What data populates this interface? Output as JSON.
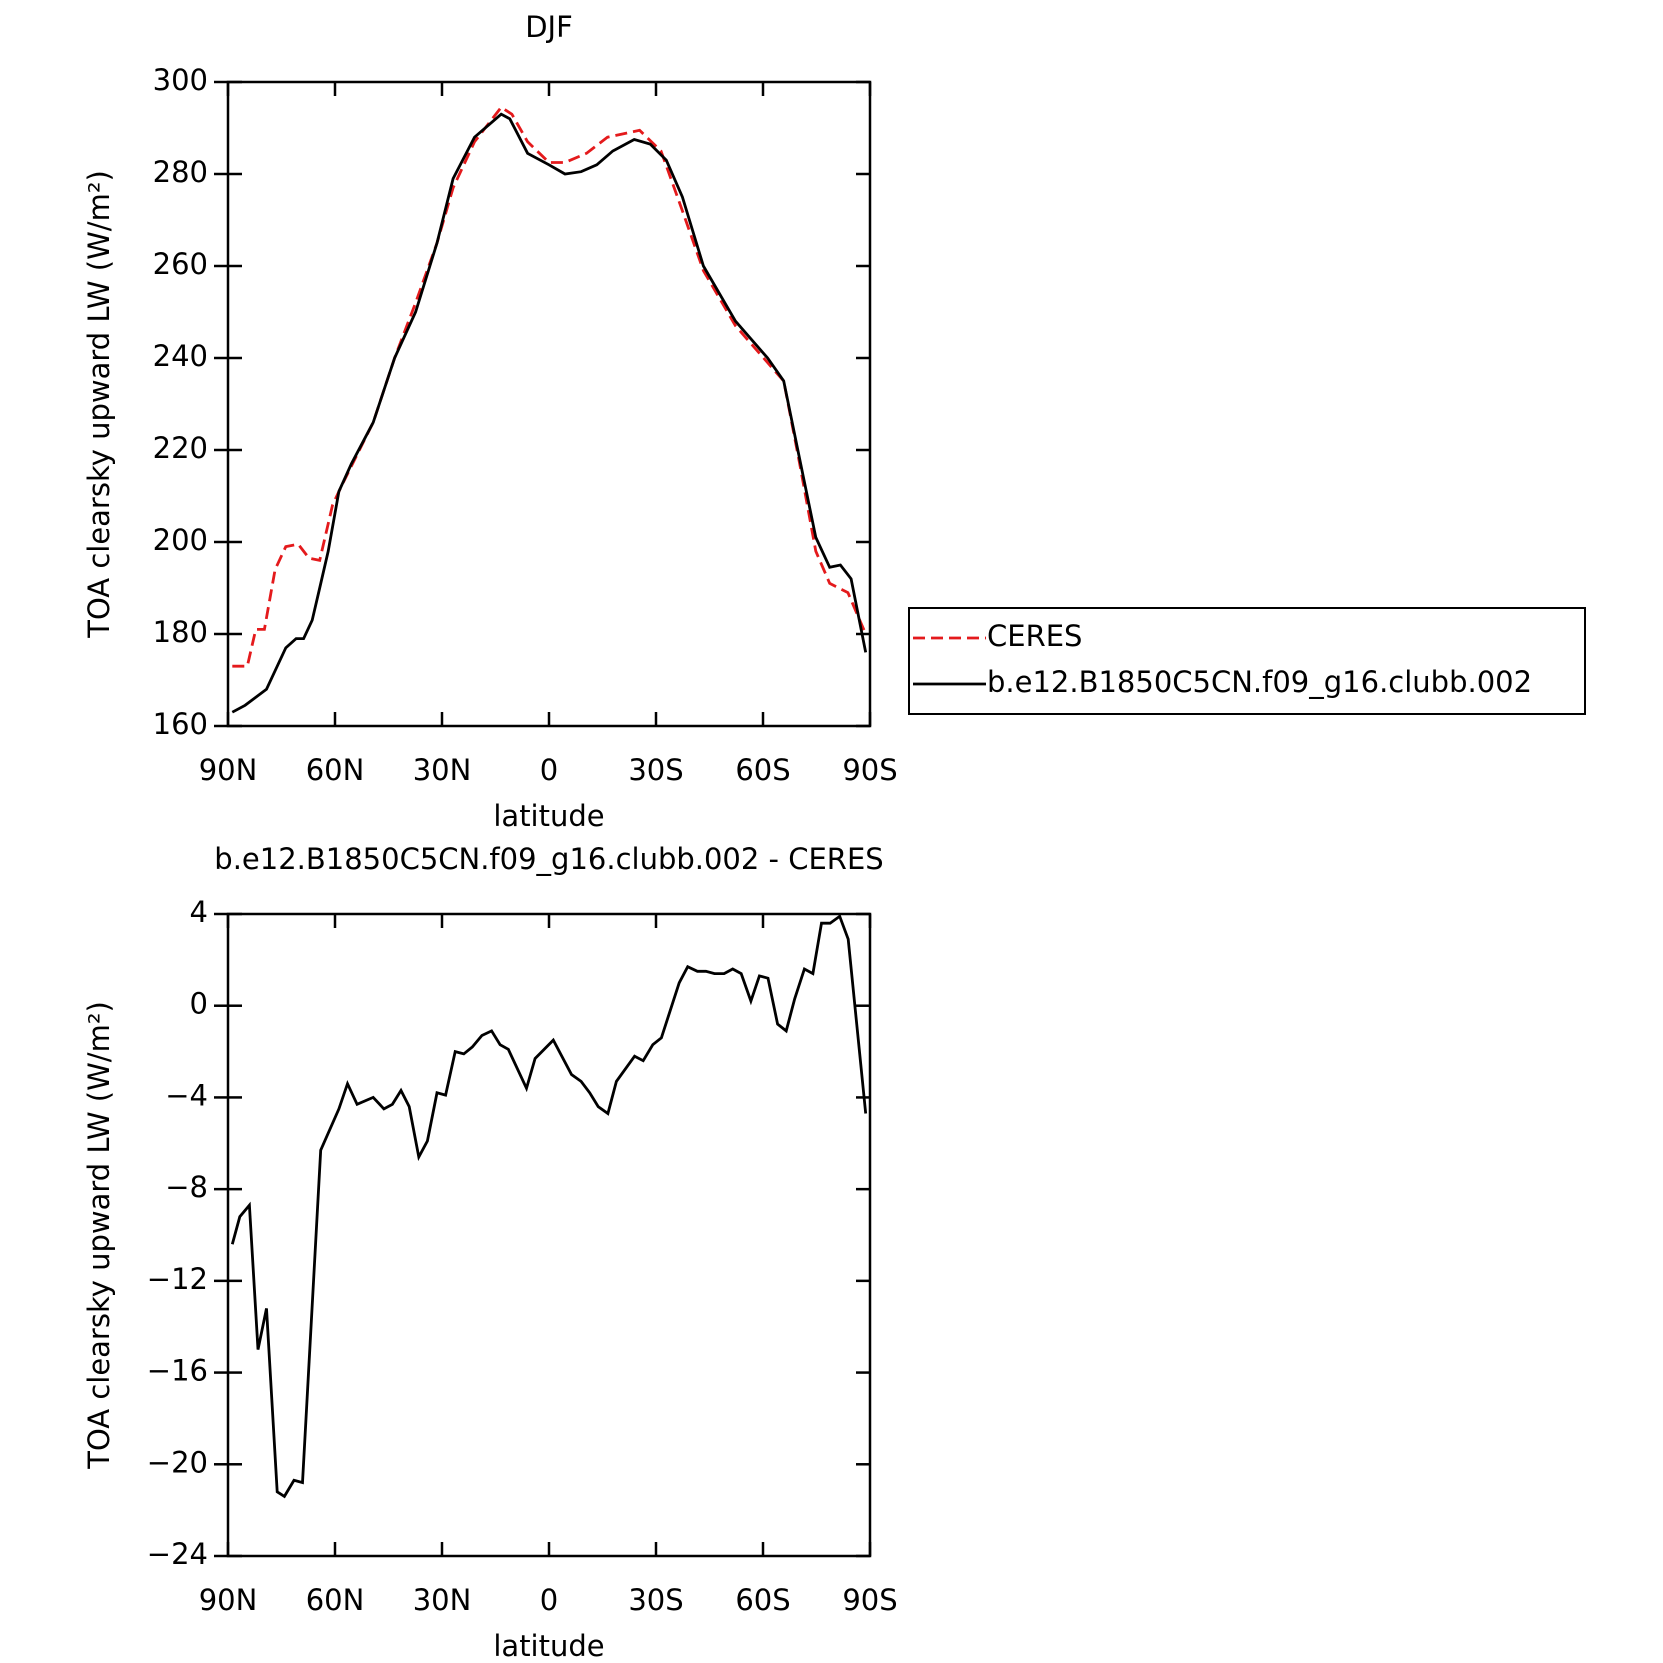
{
  "chart_data": [
    {
      "type": "line",
      "title": "DJF",
      "x_label": "latitude",
      "y_label": "TOA clearsky upward LW (W/m²)",
      "xlim": [
        90,
        -90
      ],
      "ylim": [
        160,
        300
      ],
      "xticks": [
        {
          "value": 90,
          "label": "90N"
        },
        {
          "value": 60,
          "label": "60N"
        },
        {
          "value": 30,
          "label": "30N"
        },
        0,
        {
          "value": -30,
          "label": "30S"
        },
        {
          "value": -60,
          "label": "60S"
        },
        {
          "value": -90,
          "label": "90S"
        }
      ],
      "yticks": [
        160,
        180,
        200,
        220,
        240,
        260,
        280,
        300
      ],
      "legend": "right",
      "series": [
        {
          "name": "CERES",
          "color": "#e41a1c",
          "style": "dashed",
          "x": [
            88.8,
            84.6,
            82.2,
            79.8,
            76.8,
            73.8,
            70.3,
            67.3,
            64.3,
            60.7,
            58.3,
            53.8,
            49.3,
            43.3,
            37.4,
            31.4,
            26.9,
            20.9,
            13.4,
            10.4,
            6.0,
            0,
            -4.5,
            -10.5,
            -16.4,
            -25.4,
            -31.4,
            -37.4,
            -43.3,
            -52.3,
            -61.3,
            -65.8,
            -70.3,
            -74.8,
            -78.7,
            -83.8,
            -88.8
          ],
          "values": [
            173,
            173,
            181,
            181,
            194,
            199,
            199.5,
            196.5,
            196,
            208,
            212,
            219,
            226,
            240,
            252,
            265,
            277,
            287,
            294.5,
            293,
            287,
            282.5,
            282.5,
            284.5,
            288,
            289.5,
            285,
            272,
            259,
            247,
            239,
            235,
            217,
            198,
            191,
            189,
            180
          ]
        },
        {
          "name": "b.e12.B1850C5CN.f09_g16.clubb.002",
          "color": "#000000",
          "style": "solid",
          "x": [
            88.8,
            85.2,
            79.2,
            73.8,
            70.9,
            68.8,
            66.4,
            64.3,
            61.9,
            58.9,
            55.4,
            49.3,
            43.3,
            37.4,
            31.4,
            26.9,
            20.9,
            13.4,
            11.0,
            6.0,
            0,
            -4.5,
            -9.0,
            -13.4,
            -17.9,
            -23.9,
            -28.4,
            -32.9,
            -37.4,
            -43.3,
            -52.3,
            -61.3,
            -65.8,
            -70.3,
            -74.8,
            -78.7,
            -81.7,
            -84.7,
            -88.8
          ],
          "values": [
            163,
            164.5,
            168,
            177,
            179,
            179,
            183,
            190,
            198,
            211,
            217,
            226,
            240,
            250,
            265,
            279,
            288,
            293,
            292,
            284.5,
            282,
            280,
            280.5,
            282,
            285,
            287.5,
            286.5,
            283,
            275,
            260,
            248,
            240,
            235,
            218,
            201,
            194.5,
            195,
            192,
            176
          ]
        }
      ]
    },
    {
      "type": "line",
      "title": "b.e12.B1850C5CN.f09_g16.clubb.002 - CERES",
      "x_label": "latitude",
      "y_label": "TOA clearsky upward LW (W/m²)",
      "xlim": [
        90,
        -90
      ],
      "ylim": [
        -24,
        4
      ],
      "xticks": [
        {
          "value": 90,
          "label": "90N"
        },
        {
          "value": 60,
          "label": "60N"
        },
        {
          "value": 30,
          "label": "30N"
        },
        0,
        {
          "value": -30,
          "label": "30S"
        },
        {
          "value": -60,
          "label": "60S"
        },
        {
          "value": -90,
          "label": "90S"
        }
      ],
      "yticks": [
        {
          "value": -24,
          "label": "−24"
        },
        {
          "value": -20,
          "label": "−20"
        },
        {
          "value": -16,
          "label": "−16"
        },
        {
          "value": -12,
          "label": "−12"
        },
        {
          "value": -8,
          "label": "−8"
        },
        {
          "value": -4,
          "label": "−4"
        },
        0,
        4
      ],
      "series": [
        {
          "color": "#000000",
          "style": "solid",
          "x": [
            88.8,
            86.7,
            84.0,
            81.6,
            79.2,
            76.2,
            74.2,
            71.5,
            69.1,
            64.0,
            58.9,
            56.5,
            53.8,
            49.3,
            46.3,
            43.9,
            41.5,
            39.2,
            36.5,
            34.1,
            31.4,
            29.0,
            26.3,
            23.9,
            21.5,
            18.8,
            16.1,
            13.7,
            11.4,
            6.3,
            3.9,
            -1.2,
            -6.3,
            -9.0,
            -11.4,
            -13.8,
            -16.5,
            -18.9,
            -24.0,
            -26.4,
            -29.1,
            -31.5,
            -36.5,
            -38.9,
            -41.6,
            -44.0,
            -46.4,
            -49.1,
            -51.5,
            -53.9,
            -56.6,
            -59.0,
            -61.4,
            -64.1,
            -66.5,
            -68.9,
            -71.6,
            -74.0,
            -76.4,
            -78.8,
            -81.5,
            -83.9,
            -88.8
          ],
          "values": [
            -10.4,
            -9.2,
            -8.7,
            -15,
            -13.2,
            -21.2,
            -21.4,
            -20.7,
            -20.8,
            -6.3,
            -4.5,
            -3.4,
            -4.3,
            -4,
            -4.5,
            -4.3,
            -3.7,
            -4.4,
            -6.6,
            -5.9,
            -3.8,
            -3.9,
            -2,
            -2.1,
            -1.8,
            -1.3,
            -1.1,
            -1.7,
            -1.9,
            -3.6,
            -2.3,
            -1.5,
            -3,
            -3.3,
            -3.8,
            -4.4,
            -4.7,
            -3.3,
            -2.2,
            -2.4,
            -1.7,
            -1.4,
            1,
            1.7,
            1.5,
            1.5,
            1.4,
            1.4,
            1.6,
            1.4,
            0.2,
            1.3,
            1.2,
            -0.8,
            -1.1,
            0.3,
            1.6,
            1.4,
            3.6,
            3.6,
            3.9,
            2.9,
            -4.7
          ]
        }
      ]
    }
  ]
}
